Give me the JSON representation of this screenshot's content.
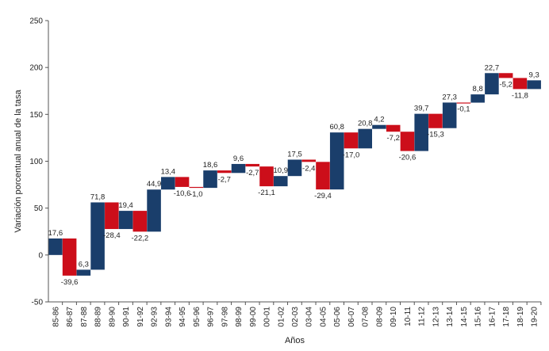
{
  "chart_data": {
    "type": "bar",
    "subtype": "waterfall",
    "title": "",
    "xlabel": "Años",
    "ylabel": "Variación porcentual anual de la tasa",
    "ylim": [
      -50,
      250
    ],
    "yticks": [
      -50,
      0,
      50,
      100,
      150,
      200,
      250
    ],
    "grid": false,
    "legend": "none",
    "colors": {
      "increase": "#1a3e6b",
      "decrease": "#cc0e1a",
      "axis": "#555555"
    },
    "categories": [
      "85-86",
      "86-87",
      "87-88",
      "88-89",
      "89-90",
      "90-91",
      "91-92",
      "92-93",
      "93-94",
      "94-95",
      "95-96",
      "96-97",
      "97-98",
      "98-99",
      "99-00",
      "00-01",
      "01-02",
      "02-03",
      "03-04",
      "04-05",
      "05-06",
      "06-07",
      "07-08",
      "08-09",
      "09-10",
      "10-11",
      "11-12",
      "12-13",
      "13-14",
      "14-15",
      "15-16",
      "16-17",
      "17-18",
      "18-19",
      "19-20"
    ],
    "values": [
      17.6,
      -39.6,
      6.3,
      71.8,
      -28.4,
      19.4,
      -22.2,
      44.9,
      13.4,
      -10.6,
      -1.0,
      18.6,
      -2.7,
      9.6,
      -2.7,
      -21.1,
      10.9,
      17.5,
      -2.4,
      -29.4,
      60.8,
      -17.0,
      20.8,
      4.2,
      -7.2,
      -20.6,
      39.7,
      -15.3,
      27.3,
      -0.1,
      8.8,
      22.7,
      -5.2,
      -11.8,
      9.3
    ],
    "labels": [
      "17,6",
      "-39,6",
      "6,3",
      "71,8",
      "-28,4",
      "19,4",
      "-22,2",
      "44,9",
      "13,4",
      "-10,6",
      "-1,0",
      "18,6",
      "-2,7",
      "9,6",
      "-2,7",
      "-21,1",
      "10,9",
      "17,5",
      "-2,4",
      "-29,4",
      "60,8",
      "-17,0",
      "20,8",
      "4,2",
      "-7,2",
      "-20,6",
      "39,7",
      "-15,3",
      "27,3",
      "-0,1",
      "8,8",
      "22,7",
      "-5,2",
      "-11,8",
      "9,3"
    ]
  }
}
